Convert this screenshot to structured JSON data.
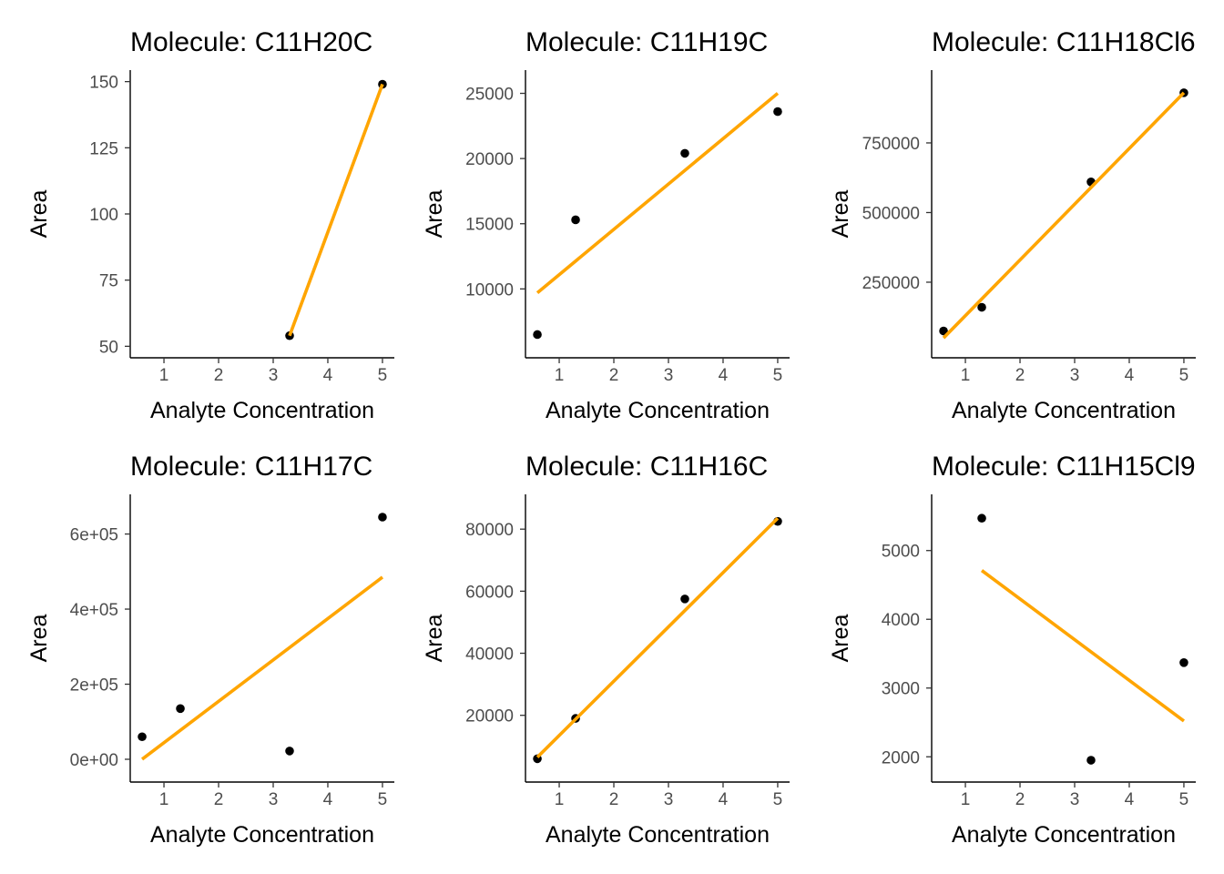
{
  "chart_data": [
    {
      "type": "scatter",
      "title": "Molecule: C11H20C",
      "xlabel": "Analyte Concentration",
      "ylabel": "Area",
      "x": [
        3.3,
        5
      ],
      "y": [
        54,
        149
      ],
      "fit": {
        "x": [
          3.3,
          5
        ],
        "y": [
          54,
          149
        ]
      },
      "xlim": [
        0.6,
        5
      ],
      "ylim": [
        50,
        150
      ],
      "xticks": [
        1,
        2,
        3,
        4,
        5
      ],
      "xtick_labels": [
        "1",
        "2",
        "3",
        "4",
        "5"
      ],
      "yticks": [
        50,
        75,
        100,
        125,
        150
      ],
      "ytick_labels": [
        "50",
        "75",
        "100",
        "125",
        "150"
      ],
      "grid": false
    },
    {
      "type": "scatter",
      "title": "Molecule: C11H19C",
      "xlabel": "Analyte Concentration",
      "ylabel": "Area",
      "x": [
        0.6,
        1.3,
        3.3,
        5
      ],
      "y": [
        6500,
        15300,
        20400,
        23600
      ],
      "fit": {
        "x": [
          0.6,
          5
        ],
        "y": [
          9700,
          25000
        ]
      },
      "xlim": [
        0.6,
        5
      ],
      "ylim": [
        5600,
        25900
      ],
      "xticks": [
        1,
        2,
        3,
        4,
        5
      ],
      "xtick_labels": [
        "1",
        "2",
        "3",
        "4",
        "5"
      ],
      "yticks": [
        10000,
        15000,
        20000,
        25000
      ],
      "ytick_labels": [
        "10000",
        "15000",
        "20000",
        "25000"
      ],
      "grid": false
    },
    {
      "type": "scatter",
      "title": "Molecule: C11H18Cl6",
      "xlabel": "Analyte Concentration",
      "ylabel": "Area",
      "x": [
        0.6,
        1.3,
        3.3,
        5
      ],
      "y": [
        75000,
        160000,
        610000,
        930000
      ],
      "fit": {
        "x": [
          0.6,
          5
        ],
        "y": [
          50000,
          930000
        ]
      },
      "xlim": [
        0.6,
        5
      ],
      "ylim": [
        20000,
        970000
      ],
      "xticks": [
        1,
        2,
        3,
        4,
        5
      ],
      "xtick_labels": [
        "1",
        "2",
        "3",
        "4",
        "5"
      ],
      "yticks": [
        250000,
        500000,
        750000
      ],
      "ytick_labels": [
        "250000",
        "500000",
        "750000"
      ],
      "grid": false
    },
    {
      "type": "scatter",
      "title": "Molecule: C11H17C",
      "xlabel": "Analyte Concentration",
      "ylabel": "Area",
      "x": [
        0.6,
        1.3,
        3.3,
        5
      ],
      "y": [
        60000,
        135000,
        22000,
        645000
      ],
      "fit": {
        "x": [
          0.6,
          5
        ],
        "y": [
          0,
          485000
        ]
      },
      "xlim": [
        0.6,
        5
      ],
      "ylim": [
        -30000,
        675000
      ],
      "xticks": [
        1,
        2,
        3,
        4,
        5
      ],
      "xtick_labels": [
        "1",
        "2",
        "3",
        "4",
        "5"
      ],
      "yticks": [
        0,
        200000,
        400000,
        600000
      ],
      "ytick_labels": [
        "0e+00",
        "2e+05",
        "4e+05",
        "6e+05"
      ],
      "grid": false
    },
    {
      "type": "scatter",
      "title": "Molecule: C11H16C",
      "xlabel": "Analyte Concentration",
      "ylabel": "Area",
      "x": [
        0.6,
        1.3,
        3.3,
        5
      ],
      "y": [
        6000,
        19000,
        57500,
        82500
      ],
      "fit": {
        "x": [
          0.6,
          5
        ],
        "y": [
          6500,
          83500
        ]
      },
      "xlim": [
        0.6,
        5
      ],
      "ylim": [
        2200,
        87500
      ],
      "xticks": [
        1,
        2,
        3,
        4,
        5
      ],
      "xtick_labels": [
        "1",
        "2",
        "3",
        "4",
        "5"
      ],
      "yticks": [
        20000,
        40000,
        60000,
        80000
      ],
      "ytick_labels": [
        "20000",
        "40000",
        "60000",
        "80000"
      ],
      "grid": false
    },
    {
      "type": "scatter",
      "title": "Molecule: C11H15Cl9",
      "xlabel": "Analyte Concentration",
      "ylabel": "Area",
      "x": [
        1.3,
        3.3,
        5
      ],
      "y": [
        5470,
        1950,
        3370
      ],
      "fit": {
        "x": [
          1.3,
          5
        ],
        "y": [
          4710,
          2520
        ]
      },
      "xlim": [
        0.6,
        5
      ],
      "ylim": [
        1800,
        5650
      ],
      "xticks": [
        1,
        2,
        3,
        4,
        5
      ],
      "xtick_labels": [
        "1",
        "2",
        "3",
        "4",
        "5"
      ],
      "yticks": [
        2000,
        3000,
        4000,
        5000
      ],
      "ytick_labels": [
        "2000",
        "3000",
        "4000",
        "5000"
      ],
      "grid": false
    }
  ],
  "style": {
    "point_color": "#000000",
    "fit_color": "#FFA500",
    "axis_color": "#000000",
    "tick_label_color": "#4D4D4D"
  }
}
